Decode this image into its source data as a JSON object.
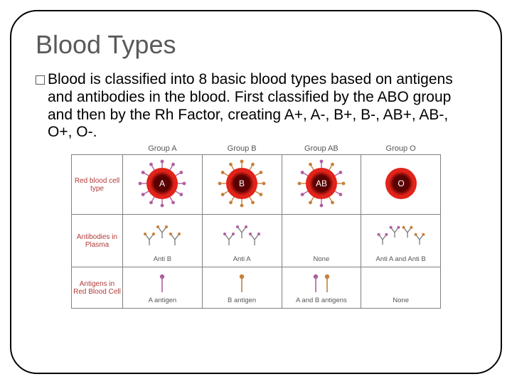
{
  "title": "Blood Types",
  "paragraph": "Blood is classified into 8 basic blood types based on antigens and antibodies in the blood. First classified by the ABO group and then by the Rh Factor, creating A+, A-, B+, B-, AB+, AB-, O+, O-.",
  "table": {
    "column_headers": [
      "Group A",
      "Group B",
      "Group AB",
      "Group O"
    ],
    "row_headers": [
      "Red blood cell type",
      "Antibodies in Plasma",
      "Antigens in Red Blood Cell"
    ],
    "cells": {
      "labels": [
        [
          "A",
          "B",
          "AB",
          "O"
        ]
      ],
      "antibody_labels": [
        "Anti B",
        "Anti A",
        "None",
        "Anti A and Anti B"
      ],
      "antigen_labels": [
        "A antigen",
        "B antigen",
        "A and B antigens",
        "None"
      ]
    },
    "colors": {
      "cell_fill": "#e2231a",
      "cell_center": "#5a0000",
      "antigen_a": "#b05fa0",
      "antigen_b": "#c77f3a",
      "antibody": "#7a7a7a",
      "border": "#808080",
      "rowhdr": "#b23a3a",
      "text": "#555555",
      "background": "#ffffff"
    },
    "style": {
      "title_fontsize": 36,
      "body_fontsize": 21,
      "table_fontsize": 10,
      "cell_radius": 22,
      "antigen_count": 12,
      "frame_border_radius": 38
    }
  }
}
